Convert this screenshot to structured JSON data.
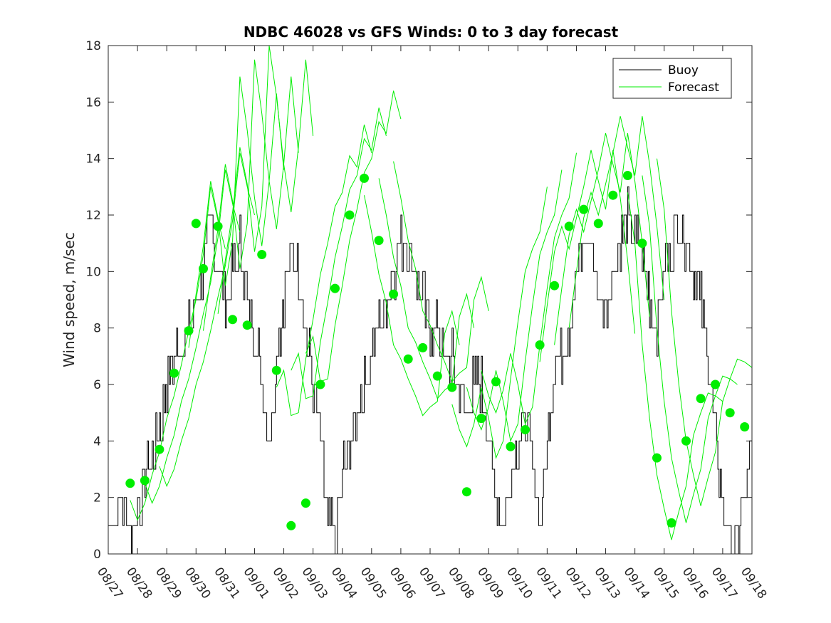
{
  "chart_data": {
    "type": "line",
    "title": "NDBC 46028 vs GFS Winds: 0 to 3 day forecast",
    "xlabel": "",
    "ylabel": "Wind speed, m/sec",
    "xlim": [
      "08/27",
      "09/18"
    ],
    "ylim": [
      0,
      18
    ],
    "yticks": [
      0,
      2,
      4,
      6,
      8,
      10,
      12,
      14,
      16,
      18
    ],
    "xticks": [
      "08/27",
      "08/28",
      "08/29",
      "08/30",
      "08/31",
      "09/01",
      "09/02",
      "09/03",
      "09/04",
      "09/05",
      "09/06",
      "09/07",
      "09/08",
      "09/09",
      "09/10",
      "09/11",
      "09/12",
      "09/13",
      "09/14",
      "09/15",
      "09/16",
      "09/17",
      "09/18"
    ],
    "legend": {
      "location": "top-right",
      "entries": [
        "Buoy",
        "Forecast"
      ]
    },
    "grid": false,
    "colors": {
      "buoy": "#000000",
      "forecast": "#00ee00",
      "axes": "#262626"
    },
    "buoy_series": {
      "name": "Buoy",
      "x_days_from_0827": [
        0,
        0.5,
        0.75,
        1,
        1.25,
        1.5,
        1.75,
        2,
        2.25,
        2.5,
        2.75,
        3,
        3.25,
        3.5,
        3.75,
        4,
        4.25,
        4.5,
        4.75,
        5,
        5.25,
        5.5,
        5.75,
        6,
        6.25,
        6.5,
        6.75,
        7,
        7.25,
        7.5,
        7.75,
        8,
        8.25,
        8.5,
        8.75,
        9,
        9.25,
        9.5,
        9.75,
        10,
        10.25,
        10.5,
        10.75,
        11,
        11.25,
        11.5,
        11.75,
        12,
        12.25,
        12.5,
        12.75,
        13,
        13.25,
        13.5,
        13.75,
        14,
        14.25,
        14.5,
        14.75,
        15,
        15.25,
        15.5,
        15.75,
        16,
        16.25,
        16.5,
        16.75,
        17,
        17.25,
        17.5,
        17.75,
        18,
        18.25,
        18.5,
        18.75,
        19,
        19.25,
        19.5,
        19.75,
        20,
        20.25,
        20.5,
        20.75,
        21,
        21.25,
        21.5,
        21.75,
        22
      ],
      "y": [
        1,
        2,
        0.5,
        1.5,
        2.5,
        3.5,
        4.5,
        6,
        7,
        7.5,
        8,
        9,
        10,
        12,
        10,
        9,
        10,
        11,
        9,
        8,
        6,
        4,
        7,
        9,
        11,
        10,
        8,
        6,
        4,
        1,
        0.5,
        3,
        4,
        5,
        6,
        7,
        8,
        9,
        10,
        11,
        11,
        10,
        9,
        8,
        8,
        7,
        7,
        6,
        5,
        6,
        6,
        4,
        2,
        1,
        3,
        4,
        5,
        3,
        1,
        4,
        7,
        7,
        8,
        10,
        11,
        11,
        9,
        9,
        10,
        11,
        12,
        11,
        11,
        9,
        8,
        10,
        11,
        12,
        11,
        10,
        9,
        7,
        4,
        2,
        0.5,
        0.5,
        2,
        4,
        5,
        5,
        3
      ]
    },
    "forecast_points": {
      "name": "Forecast",
      "x_days_from_0827": [
        0.75,
        1.25,
        1.75,
        2.25,
        2.75,
        3.0,
        3.25,
        3.75,
        4.25,
        4.75,
        5.25,
        5.75,
        6.25,
        6.75,
        7.25,
        7.75,
        8.25,
        8.75,
        9.25,
        9.75,
        10.25,
        10.75,
        11.25,
        11.75,
        12.25,
        12.75,
        13.25,
        13.75,
        14.25,
        14.75,
        15.25,
        15.75,
        16.25,
        16.75,
        17.25,
        17.75,
        18.25,
        18.75,
        19.25,
        19.75,
        20.25,
        20.75,
        21.25,
        21.75
      ],
      "y": [
        2.5,
        2.6,
        3.7,
        6.4,
        7.9,
        11.7,
        10.1,
        11.6,
        8.3,
        8.1,
        10.6,
        6.5,
        1.0,
        1.8,
        6.0,
        9.4,
        12.0,
        13.3,
        11.1,
        9.2,
        6.9,
        7.3,
        6.3,
        5.9,
        2.2,
        4.8,
        6.1,
        3.8,
        4.4,
        7.4,
        9.5,
        11.6,
        12.2,
        11.7,
        12.7,
        13.4,
        11.0,
        3.4,
        1.1,
        4.0,
        5.5,
        6.0,
        5.0,
        4.5
      ]
    },
    "forecast_lines": [
      {
        "x_start": 0.75,
        "y": [
          2.5,
          1.8,
          2.4,
          3.4,
          4.2,
          5.4,
          6.2,
          7.3,
          8.5,
          9.6,
          11.2,
          13.6,
          12.4,
          11.4
        ]
      },
      {
        "x_start": 2.75,
        "y": [
          7.9,
          9.8,
          11.5,
          13.8,
          12.5,
          10.1,
          11.7,
          17.5,
          15.6,
          13.2,
          11.5,
          13.8,
          16.9,
          14.2
        ]
      },
      {
        "x_start": 5.75,
        "y": [
          6.5,
          7.1,
          5.5,
          5.6,
          7.5,
          8.9,
          10.5,
          11.6,
          12.9,
          13.4,
          14.7,
          14.3,
          15.8,
          14.8
        ]
      },
      {
        "x_start": 8.75,
        "y": [
          13.3,
          12.0,
          10.5,
          9.5,
          8.0,
          7.5,
          6.8,
          6.2,
          5.5,
          5.8,
          6.0,
          8.4,
          9.2,
          8.0
        ]
      },
      {
        "x_start": 11.75,
        "y": [
          5.9,
          5.0,
          4.4,
          5.2,
          6.5,
          5.4,
          4.0,
          4.6,
          6.8,
          8.8,
          10.6,
          11.4,
          12.0,
          13.6
        ]
      },
      {
        "x_start": 14.75,
        "y": [
          7.4,
          9.4,
          11.3,
          12.2,
          11.4,
          12.5,
          13.6,
          14.9,
          13.8,
          12.8,
          14.9,
          13.2,
          11.0,
          8.4
        ]
      },
      {
        "x_start": 17.75,
        "y": [
          13.4,
          11.6,
          8.0,
          5.4,
          3.4,
          2.2,
          1.1,
          2.1,
          3.0,
          4.8,
          5.6,
          6.3,
          6.2,
          6.0
        ]
      }
    ]
  }
}
